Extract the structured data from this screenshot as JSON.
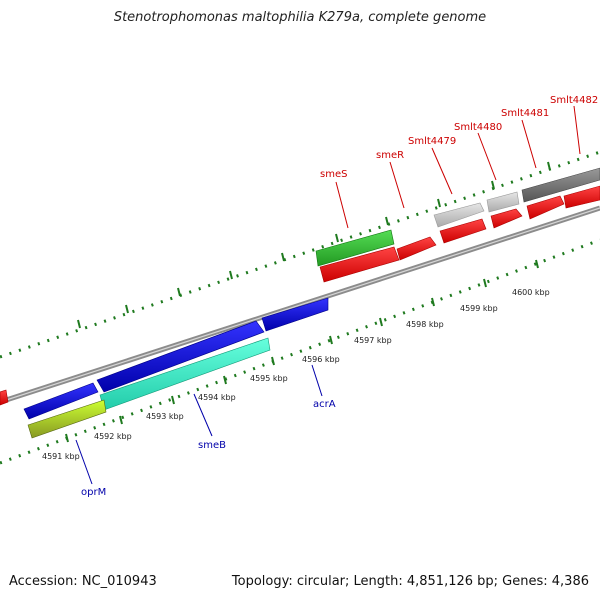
{
  "title": "Stenotrophomonas maltophilia K279a, complete genome",
  "footer": {
    "accession": "Accession: NC_010943",
    "summary": "Topology: circular; Length: 4,851,126 bp; Genes: 4,386"
  },
  "colors": {
    "backbone": "#8c8c8c",
    "tick": "#1f7a1f",
    "label_red": "#cc0000",
    "label_blue": "#0000aa",
    "kbp_label": "#222222"
  },
  "kbp_labels": [
    {
      "text": "4591 kbp"
    },
    {
      "text": "4592 kbp"
    },
    {
      "text": "4593 kbp"
    },
    {
      "text": "4594 kbp"
    },
    {
      "text": "4595 kbp"
    },
    {
      "text": "4596 kbp"
    },
    {
      "text": "4597 kbp"
    },
    {
      "text": "4598 kbp"
    },
    {
      "text": "4599 kbp"
    },
    {
      "text": "4600 kbp"
    }
  ],
  "genes_top": [
    {
      "name": "smeS",
      "color": "#33bb33"
    },
    {
      "name": "smeR",
      "color": "#ee1111"
    },
    {
      "name": "Smlt4479",
      "color": "#cccccc"
    },
    {
      "name": "Smlt4480",
      "color": "#cccccc"
    },
    {
      "name": "Smlt4481",
      "color": "#777777"
    },
    {
      "name": "Smlt4482",
      "color": "#777777"
    }
  ],
  "genes_bottom": [
    {
      "name": "oprM",
      "color": "#88cc22"
    },
    {
      "name": "smeB",
      "color": "#33ffcc"
    },
    {
      "name": "acrA",
      "color": "#1111dd"
    }
  ]
}
